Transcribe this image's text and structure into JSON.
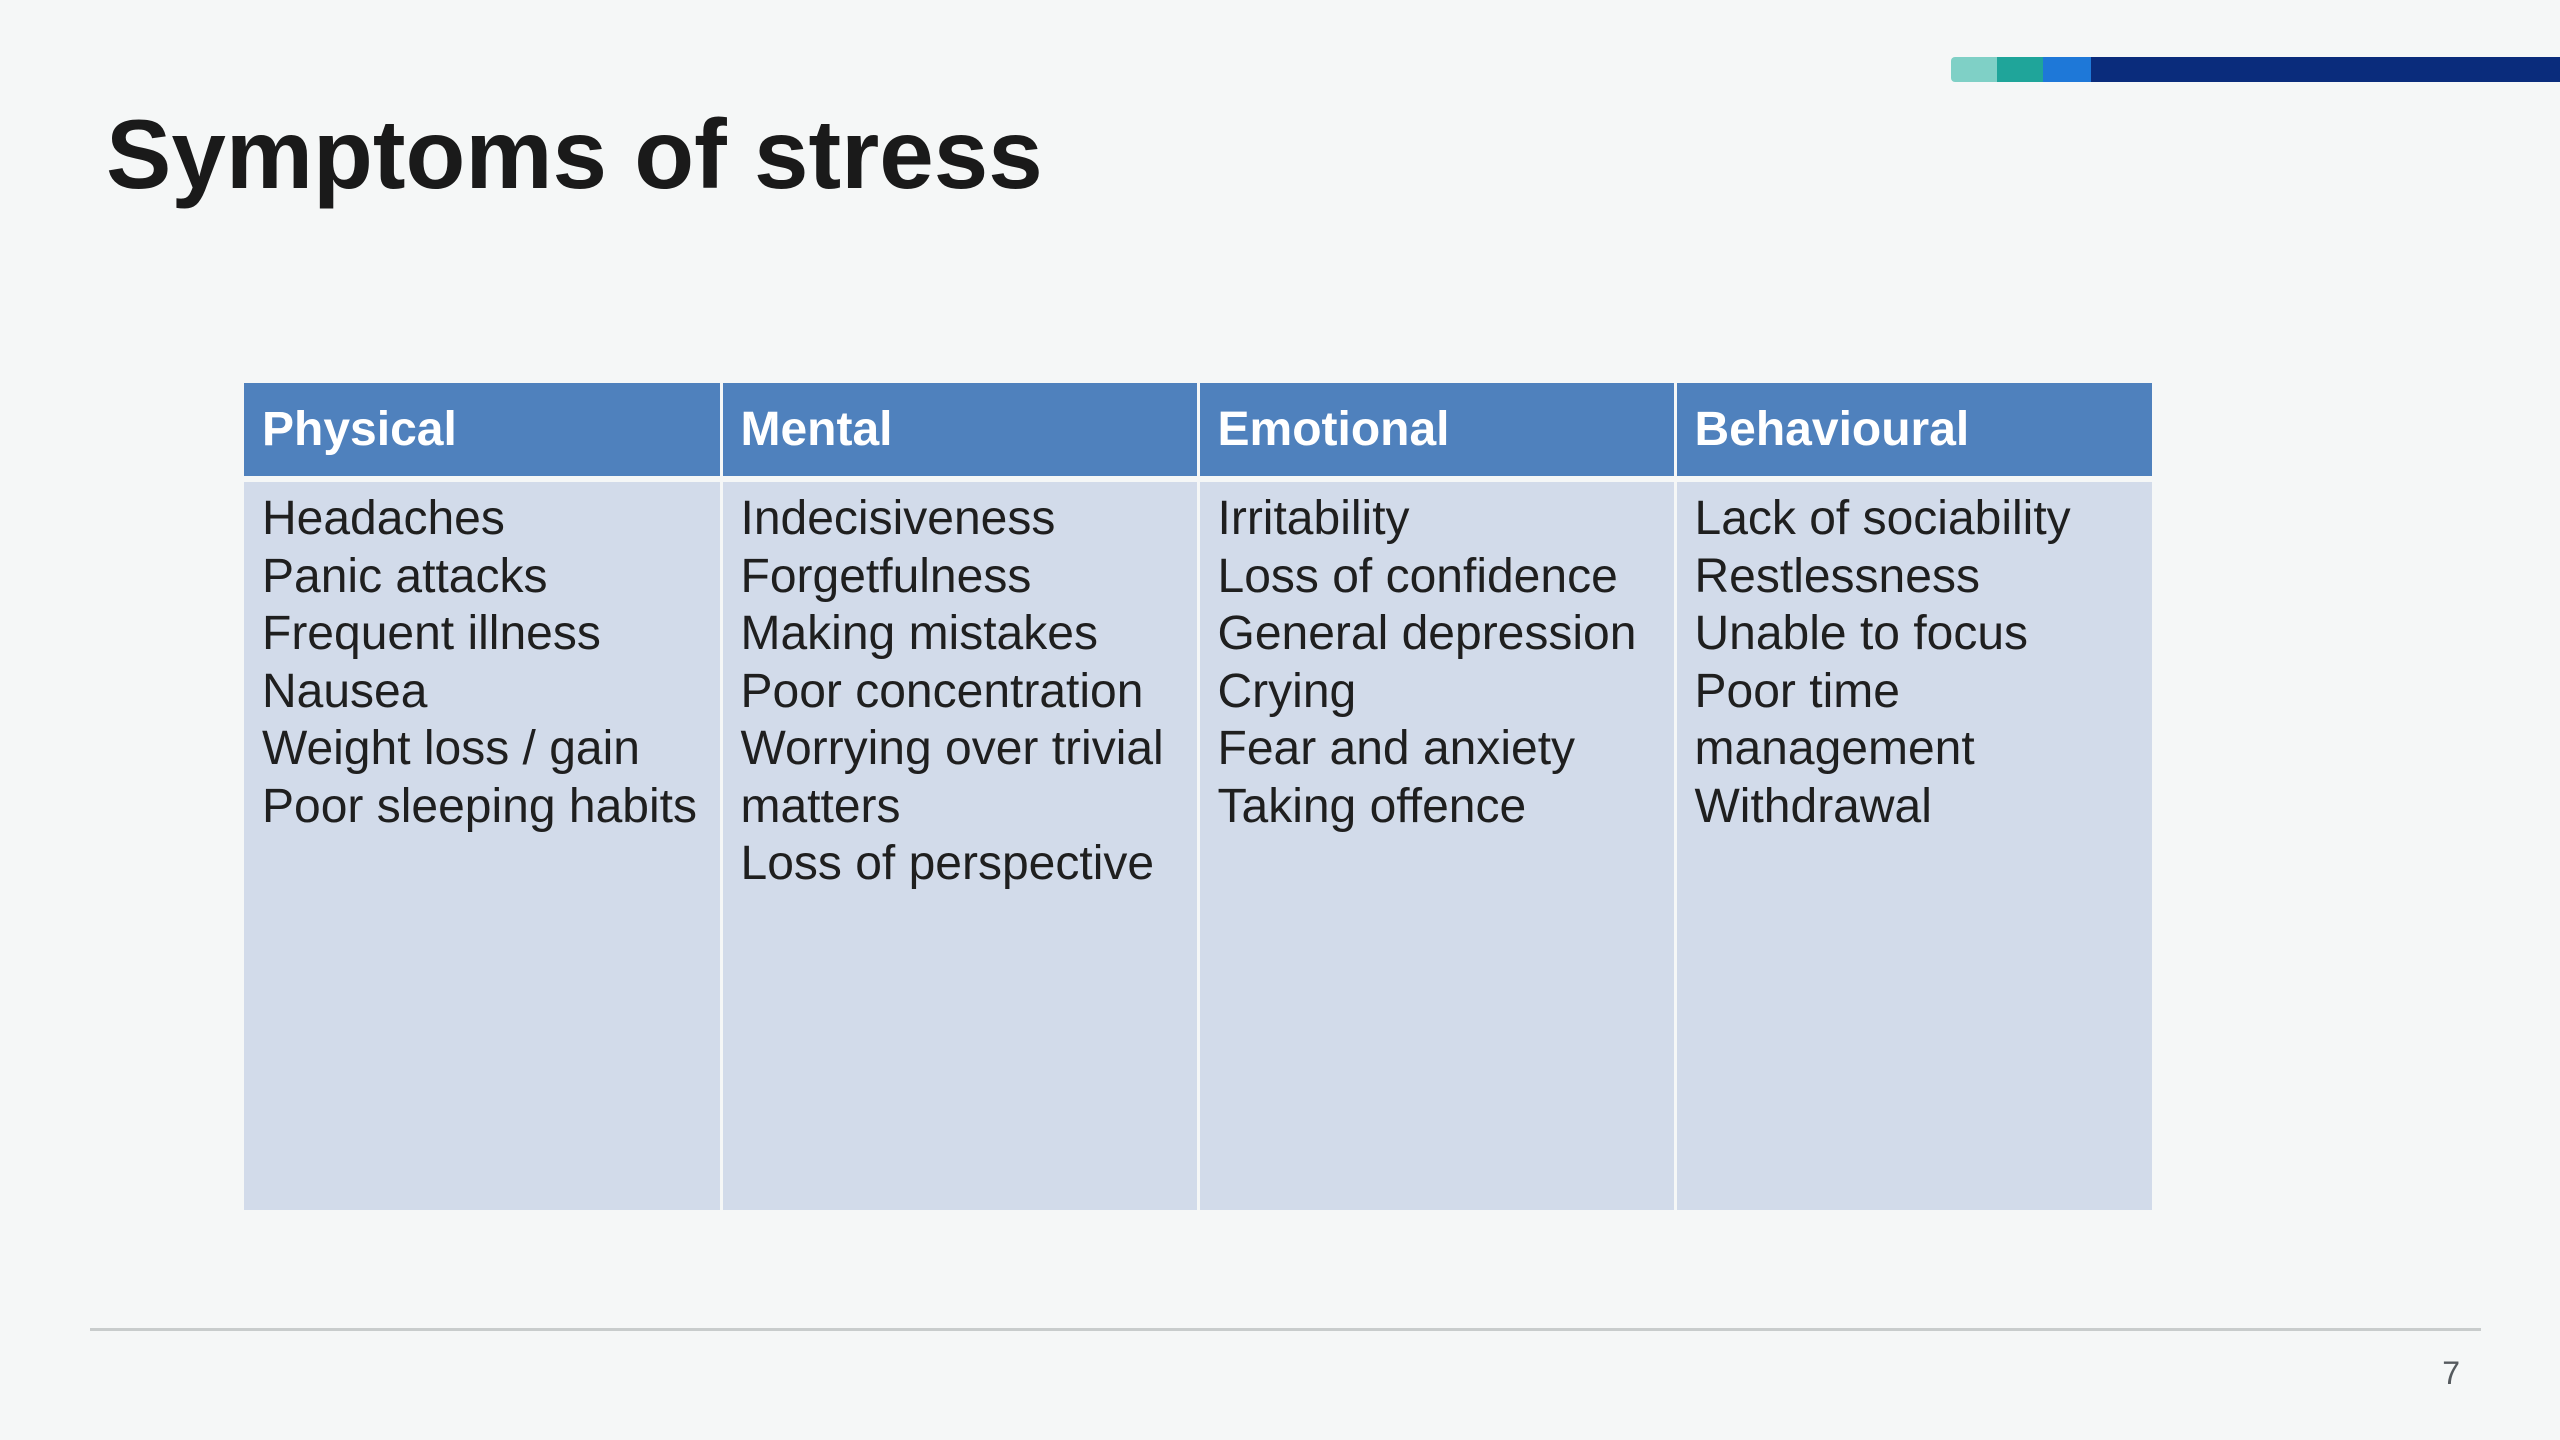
{
  "slide": {
    "title": "Symptoms of stress",
    "page_number": "7",
    "accent_colors": [
      "#7fd0c6",
      "#1fa59a",
      "#1e78d8",
      "#0a2c7c"
    ]
  },
  "table": {
    "header_color": "#4f81bd",
    "body_color": "#d2dbea",
    "columns": [
      {
        "header": "Physical",
        "lines": [
          "Headaches",
          "Panic attacks",
          "Frequent illness",
          "Nausea",
          "Weight loss / gain",
          "Poor sleeping habits"
        ]
      },
      {
        "header": "Mental",
        "lines": [
          "Indecisiveness",
          "Forgetfulness",
          "Making mistakes",
          "Poor concentration",
          "Worrying over trivial",
          "matters",
          "Loss of perspective"
        ]
      },
      {
        "header": "Emotional",
        "lines": [
          "Irritability",
          "Loss of confidence",
          "General depression",
          "Crying",
          "Fear and anxiety",
          "Taking offence"
        ]
      },
      {
        "header": "Behavioural",
        "lines": [
          "Lack of sociability",
          "Restlessness",
          "Unable to focus",
          "Poor time",
          "management",
          "Withdrawal"
        ]
      }
    ]
  }
}
